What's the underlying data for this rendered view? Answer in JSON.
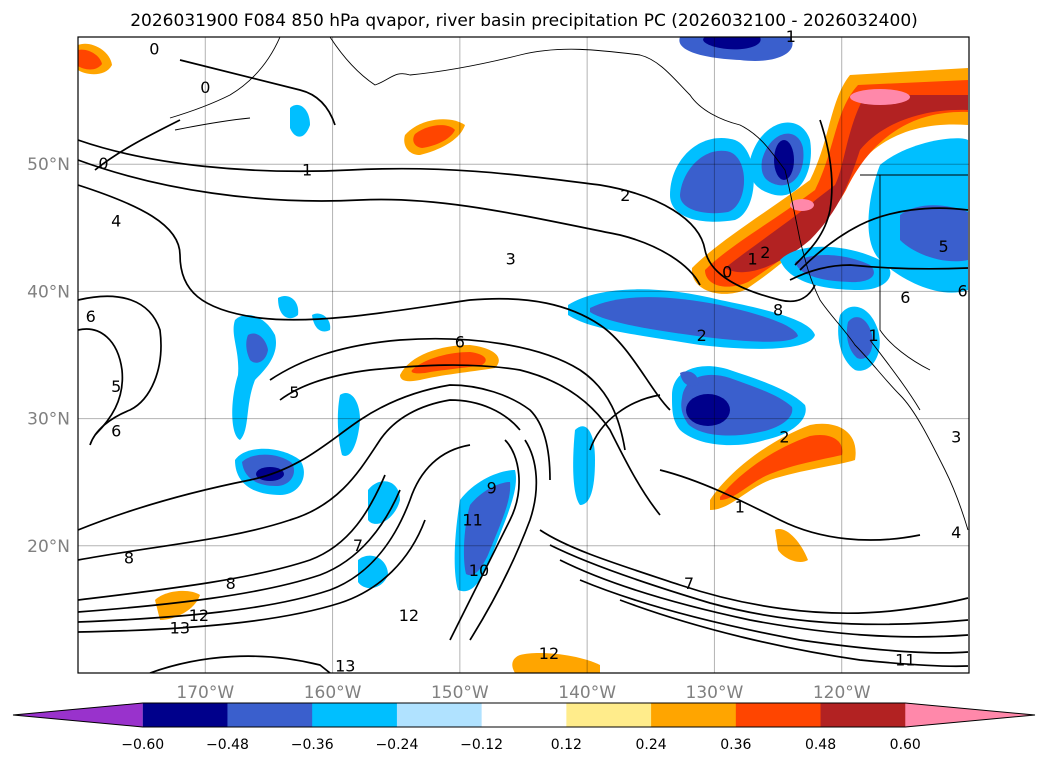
{
  "title": "2026031900 F084 850 hPa qvapor, river basin precipitation PC (2026032100 - 2026032400)",
  "map": {
    "projection": "plate carree",
    "lon_range": [
      -180,
      -110
    ],
    "lat_range": [
      10,
      60
    ],
    "grid": true,
    "lat_labels": [
      "50°N",
      "40°N",
      "30°N",
      "20°N"
    ],
    "lon_labels": [
      "170°W",
      "160°W",
      "150°W",
      "140°W",
      "130°W",
      "120°W"
    ]
  },
  "colorbar": {
    "orientation": "horizontal",
    "extend": "both",
    "colors": [
      "#9932cc",
      "#00008b",
      "#3a5fcd",
      "#00bfff",
      "#b0e2ff",
      "#ffffff",
      "#ffec8b",
      "#ffa500",
      "#ff4500",
      "#b22222",
      "#ff88aa"
    ],
    "tick_labels": [
      "−0.60",
      "−0.48",
      "−0.36",
      "−0.24",
      "−0.12",
      "0.12",
      "0.24",
      "0.36",
      "0.48",
      "0.60"
    ]
  },
  "contour_labels": [
    {
      "text": "0",
      "lon": -174,
      "lat": 59
    },
    {
      "text": "0",
      "lon": -170,
      "lat": 56
    },
    {
      "text": "0",
      "lon": -178,
      "lat": 50
    },
    {
      "text": "1",
      "lon": -162,
      "lat": 49.5
    },
    {
      "text": "2",
      "lon": -137,
      "lat": 47.5
    },
    {
      "text": "4",
      "lon": -177,
      "lat": 45.5
    },
    {
      "text": "3",
      "lon": -146,
      "lat": 42.5
    },
    {
      "text": "6",
      "lon": -179,
      "lat": 38
    },
    {
      "text": "6",
      "lon": -150,
      "lat": 36
    },
    {
      "text": "5",
      "lon": -177,
      "lat": 32.5
    },
    {
      "text": "5",
      "lon": -163,
      "lat": 32
    },
    {
      "text": "6",
      "lon": -177,
      "lat": 29
    },
    {
      "text": "9",
      "lon": -147.5,
      "lat": 24.5
    },
    {
      "text": "11",
      "lon": -149,
      "lat": 22
    },
    {
      "text": "7",
      "lon": -158,
      "lat": 20
    },
    {
      "text": "8",
      "lon": -176,
      "lat": 19
    },
    {
      "text": "8",
      "lon": -168,
      "lat": 17
    },
    {
      "text": "10",
      "lon": -148.5,
      "lat": 18
    },
    {
      "text": "7",
      "lon": -132,
      "lat": 17
    },
    {
      "text": "12",
      "lon": -170.5,
      "lat": 14.5
    },
    {
      "text": "13",
      "lon": -172,
      "lat": 13.5
    },
    {
      "text": "12",
      "lon": -154,
      "lat": 14.5
    },
    {
      "text": "12",
      "lon": -143,
      "lat": 11.5
    },
    {
      "text": "13",
      "lon": -159,
      "lat": 10.5
    },
    {
      "text": "11",
      "lon": -115,
      "lat": 11
    },
    {
      "text": "1",
      "lon": -124,
      "lat": 60
    },
    {
      "text": "0",
      "lon": -129,
      "lat": 41.5
    },
    {
      "text": "1",
      "lon": -127,
      "lat": 42.5
    },
    {
      "text": "2",
      "lon": -126,
      "lat": 43
    },
    {
      "text": "8",
      "lon": -125,
      "lat": 38.5
    },
    {
      "text": "2",
      "lon": -131,
      "lat": 36.5
    },
    {
      "text": "1",
      "lon": -117.5,
      "lat": 36.5
    },
    {
      "text": "6",
      "lon": -115,
      "lat": 39.5
    },
    {
      "text": "2",
      "lon": -124.5,
      "lat": 28.5
    },
    {
      "text": "1",
      "lon": -128,
      "lat": 23
    },
    {
      "text": "4",
      "lon": -111,
      "lat": 21
    },
    {
      "text": "3",
      "lon": -111,
      "lat": 28.5
    },
    {
      "text": "5",
      "lon": -112,
      "lat": 43.5
    },
    {
      "text": "6",
      "lon": -110.5,
      "lat": 40
    }
  ]
}
